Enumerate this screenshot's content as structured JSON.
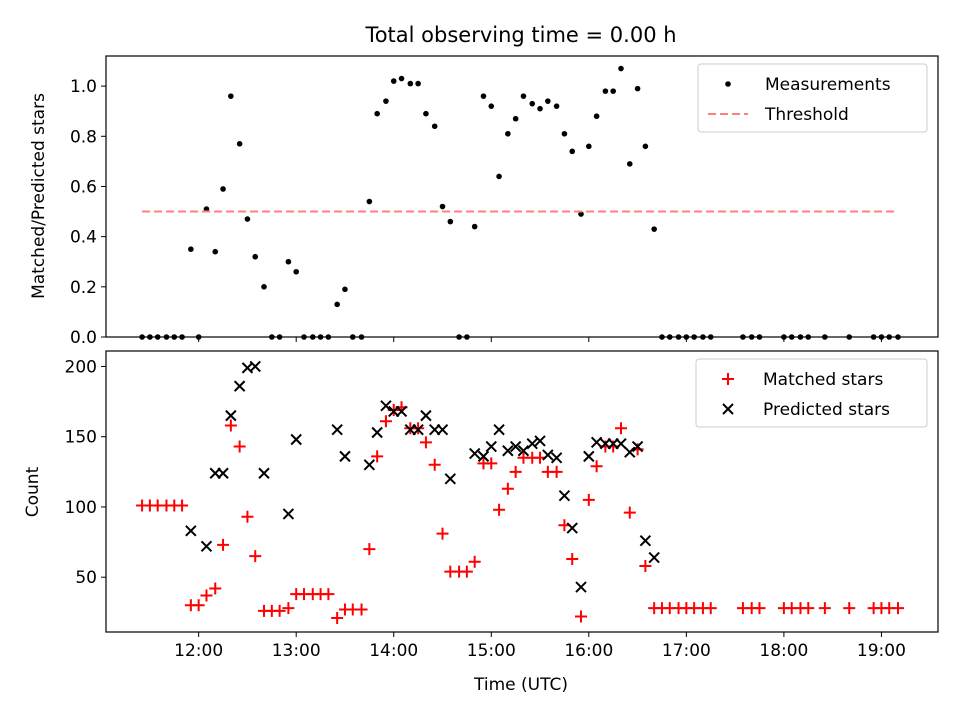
{
  "chart_data": [
    {
      "type": "scatter",
      "title": "Total observing time = 0.00 h",
      "xlabel": "",
      "ylabel": "Matched/Predicted stars",
      "xlim": [
        11.05,
        19.58
      ],
      "ylim": [
        0,
        1.12
      ],
      "yticks": [
        0.0,
        0.2,
        0.4,
        0.6,
        0.8,
        1.0
      ],
      "ytick_labels": [
        "0.0",
        "0.2",
        "0.4",
        "0.6",
        "0.8",
        "1.0"
      ],
      "xticks": [
        12,
        13,
        14,
        15,
        16,
        17,
        18,
        19
      ],
      "legend_position": "top-right",
      "series": [
        {
          "name": "Measurements",
          "kind": "scatter",
          "color": "#000000",
          "points": [
            [
              11.42,
              0
            ],
            [
              11.5,
              0
            ],
            [
              11.58,
              0
            ],
            [
              11.67,
              0
            ],
            [
              11.75,
              0
            ],
            [
              11.83,
              0
            ],
            [
              11.92,
              0.35
            ],
            [
              12.0,
              0
            ],
            [
              12.08,
              0.51
            ],
            [
              12.17,
              0.34
            ],
            [
              12.25,
              0.59
            ],
            [
              12.33,
              0.96
            ],
            [
              12.42,
              0.77
            ],
            [
              12.5,
              0.47
            ],
            [
              12.58,
              0.32
            ],
            [
              12.67,
              0.2
            ],
            [
              12.75,
              0
            ],
            [
              12.83,
              0
            ],
            [
              12.92,
              0.3
            ],
            [
              13.0,
              0.26
            ],
            [
              13.08,
              0
            ],
            [
              13.17,
              0
            ],
            [
              13.25,
              0
            ],
            [
              13.33,
              0
            ],
            [
              13.42,
              0.13
            ],
            [
              13.5,
              0.19
            ],
            [
              13.58,
              0
            ],
            [
              13.67,
              0
            ],
            [
              13.75,
              0.54
            ],
            [
              13.83,
              0.89
            ],
            [
              13.92,
              0.94
            ],
            [
              14.0,
              1.02
            ],
            [
              14.08,
              1.03
            ],
            [
              14.17,
              1.01
            ],
            [
              14.25,
              1.01
            ],
            [
              14.33,
              0.89
            ],
            [
              14.42,
              0.84
            ],
            [
              14.5,
              0.52
            ],
            [
              14.58,
              0.46
            ],
            [
              14.67,
              0
            ],
            [
              14.75,
              0
            ],
            [
              14.83,
              0.44
            ],
            [
              14.92,
              0.96
            ],
            [
              15.0,
              0.92
            ],
            [
              15.08,
              0.64
            ],
            [
              15.17,
              0.81
            ],
            [
              15.25,
              0.87
            ],
            [
              15.33,
              0.96
            ],
            [
              15.42,
              0.93
            ],
            [
              15.5,
              0.91
            ],
            [
              15.58,
              0.94
            ],
            [
              15.67,
              0.92
            ],
            [
              15.75,
              0.81
            ],
            [
              15.83,
              0.74
            ],
            [
              15.92,
              0.49
            ],
            [
              16.0,
              0.76
            ],
            [
              16.08,
              0.88
            ],
            [
              16.17,
              0.98
            ],
            [
              16.25,
              0.98
            ],
            [
              16.33,
              1.07
            ],
            [
              16.42,
              0.69
            ],
            [
              16.5,
              0.99
            ],
            [
              16.58,
              0.76
            ],
            [
              16.67,
              0.43
            ],
            [
              16.75,
              0
            ],
            [
              16.83,
              0
            ],
            [
              16.92,
              0
            ],
            [
              17.0,
              0
            ],
            [
              17.08,
              0
            ],
            [
              17.17,
              0
            ],
            [
              17.25,
              0
            ],
            [
              17.58,
              0
            ],
            [
              17.67,
              0
            ],
            [
              17.75,
              0
            ],
            [
              18.0,
              0
            ],
            [
              18.08,
              0
            ],
            [
              18.17,
              0
            ],
            [
              18.25,
              0
            ],
            [
              18.42,
              0
            ],
            [
              18.67,
              0
            ],
            [
              18.92,
              0
            ],
            [
              19.0,
              0
            ],
            [
              19.08,
              0
            ],
            [
              19.17,
              0
            ]
          ]
        },
        {
          "name": "Threshold",
          "kind": "line",
          "color": "#ff7f7f",
          "dashed": true,
          "points": [
            [
              11.42,
              0.5
            ],
            [
              19.17,
              0.5
            ]
          ]
        }
      ]
    },
    {
      "type": "scatter",
      "title": "",
      "xlabel": "Time (UTC)",
      "ylabel": "Count",
      "xlim": [
        11.05,
        19.58
      ],
      "ylim": [
        11,
        211
      ],
      "yticks": [
        50,
        100,
        150,
        200
      ],
      "ytick_labels": [
        "50",
        "100",
        "150",
        "200"
      ],
      "xticks": [
        12,
        13,
        14,
        15,
        16,
        17,
        18,
        19
      ],
      "xtick_labels": [
        "12:00",
        "13:00",
        "14:00",
        "15:00",
        "16:00",
        "17:00",
        "18:00",
        "19:00"
      ],
      "legend_position": "top-right",
      "series": [
        {
          "name": "Matched stars",
          "kind": "plus",
          "color": "#ff0000",
          "points": [
            [
              11.42,
              101
            ],
            [
              11.5,
              101
            ],
            [
              11.58,
              101
            ],
            [
              11.67,
              101
            ],
            [
              11.75,
              101
            ],
            [
              11.83,
              101
            ],
            [
              11.92,
              30
            ],
            [
              12.0,
              30
            ],
            [
              12.08,
              37
            ],
            [
              12.17,
              42
            ],
            [
              12.25,
              73
            ],
            [
              12.33,
              158
            ],
            [
              12.42,
              143
            ],
            [
              12.5,
              93
            ],
            [
              12.58,
              65
            ],
            [
              12.67,
              26
            ],
            [
              12.75,
              26
            ],
            [
              12.83,
              26
            ],
            [
              12.92,
              28
            ],
            [
              13.0,
              38
            ],
            [
              13.08,
              38
            ],
            [
              13.17,
              38
            ],
            [
              13.25,
              38
            ],
            [
              13.33,
              38
            ],
            [
              13.42,
              21
            ],
            [
              13.5,
              27
            ],
            [
              13.58,
              27
            ],
            [
              13.67,
              27
            ],
            [
              13.75,
              70
            ],
            [
              13.83,
              136
            ],
            [
              13.92,
              161
            ],
            [
              14.0,
              169
            ],
            [
              14.08,
              171
            ],
            [
              14.17,
              156
            ],
            [
              14.25,
              156
            ],
            [
              14.33,
              146
            ],
            [
              14.42,
              130
            ],
            [
              14.5,
              81
            ],
            [
              14.58,
              54
            ],
            [
              14.67,
              54
            ],
            [
              14.75,
              54
            ],
            [
              14.83,
              61
            ],
            [
              14.92,
              131
            ],
            [
              15.0,
              131
            ],
            [
              15.08,
              98
            ],
            [
              15.17,
              113
            ],
            [
              15.25,
              125
            ],
            [
              15.33,
              135
            ],
            [
              15.42,
              135
            ],
            [
              15.5,
              135
            ],
            [
              15.58,
              125
            ],
            [
              15.67,
              125
            ],
            [
              15.75,
              87
            ],
            [
              15.83,
              63
            ],
            [
              15.92,
              22
            ],
            [
              16.0,
              105
            ],
            [
              16.08,
              129
            ],
            [
              16.17,
              143
            ],
            [
              16.25,
              143
            ],
            [
              16.33,
              156
            ],
            [
              16.42,
              96
            ],
            [
              16.5,
              141
            ],
            [
              16.58,
              58
            ],
            [
              16.67,
              28
            ],
            [
              16.75,
              28
            ],
            [
              16.83,
              28
            ],
            [
              16.92,
              28
            ],
            [
              17.0,
              28
            ],
            [
              17.08,
              28
            ],
            [
              17.17,
              28
            ],
            [
              17.25,
              28
            ],
            [
              17.58,
              28
            ],
            [
              17.67,
              28
            ],
            [
              17.75,
              28
            ],
            [
              18.0,
              28
            ],
            [
              18.08,
              28
            ],
            [
              18.17,
              28
            ],
            [
              18.25,
              28
            ],
            [
              18.42,
              28
            ],
            [
              18.67,
              28
            ],
            [
              18.92,
              28
            ],
            [
              19.0,
              28
            ],
            [
              19.08,
              28
            ],
            [
              19.17,
              28
            ]
          ]
        },
        {
          "name": "Predicted stars",
          "kind": "x",
          "color": "#000000",
          "points": [
            [
              11.92,
              83
            ],
            [
              12.08,
              72
            ],
            [
              12.17,
              124
            ],
            [
              12.25,
              124
            ],
            [
              12.33,
              165
            ],
            [
              12.42,
              186
            ],
            [
              12.5,
              199
            ],
            [
              12.58,
              200
            ],
            [
              12.67,
              124
            ],
            [
              12.92,
              95
            ],
            [
              13.0,
              148
            ],
            [
              13.42,
              155
            ],
            [
              13.5,
              136
            ],
            [
              13.75,
              130
            ],
            [
              13.83,
              153
            ],
            [
              13.92,
              172
            ],
            [
              14.0,
              168
            ],
            [
              14.08,
              168
            ],
            [
              14.17,
              155
            ],
            [
              14.25,
              155
            ],
            [
              14.33,
              165
            ],
            [
              14.42,
              155
            ],
            [
              14.5,
              155
            ],
            [
              14.58,
              120
            ],
            [
              14.83,
              138
            ],
            [
              14.92,
              136
            ],
            [
              15.0,
              143
            ],
            [
              15.08,
              155
            ],
            [
              15.17,
              140
            ],
            [
              15.25,
              143
            ],
            [
              15.33,
              140
            ],
            [
              15.42,
              145
            ],
            [
              15.5,
              147
            ],
            [
              15.58,
              137
            ],
            [
              15.67,
              135
            ],
            [
              15.75,
              108
            ],
            [
              15.83,
              85
            ],
            [
              15.92,
              43
            ],
            [
              16.0,
              136
            ],
            [
              16.08,
              146
            ],
            [
              16.17,
              145
            ],
            [
              16.25,
              145
            ],
            [
              16.33,
              145
            ],
            [
              16.42,
              139
            ],
            [
              16.5,
              143
            ],
            [
              16.58,
              76
            ],
            [
              16.67,
              64
            ]
          ]
        }
      ]
    }
  ]
}
